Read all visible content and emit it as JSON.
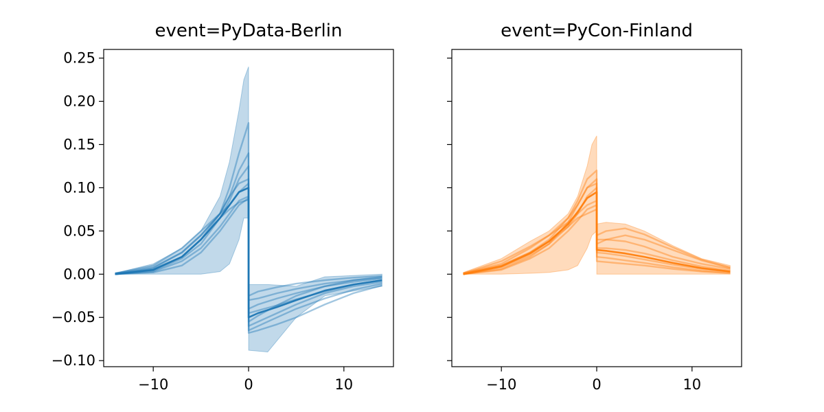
{
  "chart_data": [
    {
      "type": "line",
      "title": "event=PyData-Berlin",
      "xlabel": "",
      "ylabel": "",
      "xlim": [
        -15.2,
        15.2
      ],
      "ylim": [
        -0.107,
        0.26
      ],
      "xticks": [
        -10,
        0,
        10
      ],
      "xtick_labels": [
        "−10",
        "0",
        "10"
      ],
      "yticks": [
        0.25,
        0.2,
        0.15,
        0.1,
        0.05,
        0.0,
        -0.05,
        -0.1
      ],
      "ytick_labels": [
        "0.25",
        "0.20",
        "0.15",
        "0.10",
        "0.05",
        "0.00",
        "−0.05",
        "−0.10"
      ],
      "grid": false,
      "color": "#1f77b4",
      "band": {
        "x": [
          -14,
          -10,
          -7,
          -5,
          -3,
          -2,
          -1,
          -0.5,
          0,
          0.01,
          2,
          5,
          8,
          14
        ],
        "upper": [
          0.001,
          0.012,
          0.03,
          0.05,
          0.09,
          0.13,
          0.19,
          0.225,
          0.24,
          -0.012,
          -0.012,
          -0.014,
          -0.003,
          0.0
        ],
        "lower": [
          0.0,
          0.0,
          0.0,
          0.0,
          0.003,
          0.012,
          0.04,
          0.065,
          0.065,
          -0.088,
          -0.09,
          -0.05,
          -0.025,
          -0.014
        ]
      },
      "series_x": [
        -14,
        -10,
        -7,
        -5,
        -3,
        -2,
        -1,
        0,
        0.01,
        1,
        3,
        5,
        8,
        11,
        14
      ],
      "series": [
        {
          "values": [
            0.001,
            0.005,
            0.02,
            0.04,
            0.07,
            0.1,
            0.14,
            0.175,
            -0.068,
            -0.065,
            -0.058,
            -0.05,
            -0.035,
            -0.022,
            -0.013
          ]
        },
        {
          "values": [
            0.001,
            0.008,
            0.025,
            0.045,
            0.07,
            0.09,
            0.12,
            0.14,
            -0.065,
            -0.06,
            -0.05,
            -0.04,
            -0.028,
            -0.018,
            -0.011
          ]
        },
        {
          "values": [
            0.0,
            0.004,
            0.018,
            0.035,
            0.065,
            0.085,
            0.11,
            0.125,
            -0.06,
            -0.055,
            -0.045,
            -0.035,
            -0.022,
            -0.014,
            -0.009
          ]
        },
        {
          "values": [
            0.001,
            0.01,
            0.03,
            0.05,
            0.07,
            0.08,
            0.095,
            0.105,
            -0.045,
            -0.042,
            -0.036,
            -0.029,
            -0.02,
            -0.012,
            -0.007
          ]
        },
        {
          "values": [
            0.0,
            0.003,
            0.015,
            0.03,
            0.055,
            0.07,
            0.085,
            0.09,
            -0.04,
            -0.035,
            -0.028,
            -0.022,
            -0.014,
            -0.009,
            -0.005
          ]
        },
        {
          "values": [
            0.0,
            0.006,
            0.02,
            0.04,
            0.065,
            0.075,
            0.083,
            0.086,
            -0.03,
            -0.028,
            -0.022,
            -0.017,
            -0.011,
            -0.007,
            -0.004
          ]
        },
        {
          "values": [
            0.0,
            0.002,
            0.01,
            0.025,
            0.05,
            0.065,
            0.08,
            0.088,
            -0.025,
            -0.02,
            -0.015,
            -0.011,
            -0.007,
            -0.004,
            -0.002
          ]
        },
        {
          "values": [
            0.0,
            0.007,
            0.025,
            0.045,
            0.07,
            0.09,
            0.105,
            0.11,
            -0.055,
            -0.048,
            -0.036,
            -0.025,
            -0.014,
            -0.007,
            -0.003
          ]
        }
      ],
      "emphasis_series": {
        "values": [
          0.0,
          0.005,
          0.02,
          0.04,
          0.065,
          0.08,
          0.095,
          0.1,
          -0.05,
          -0.045,
          -0.038,
          -0.03,
          -0.019,
          -0.012,
          -0.007
        ]
      }
    },
    {
      "type": "line",
      "title": "event=PyCon-Finland",
      "xlabel": "",
      "ylabel": "",
      "xlim": [
        -15.2,
        15.2
      ],
      "ylim": [
        -0.107,
        0.26
      ],
      "xticks": [
        -10,
        0,
        10
      ],
      "xtick_labels": [
        "−10",
        "0",
        "10"
      ],
      "yticks": [
        0.25,
        0.2,
        0.15,
        0.1,
        0.05,
        0.0,
        -0.05,
        -0.1
      ],
      "ytick_labels": [],
      "grid": false,
      "color": "#ff7f0e",
      "band": {
        "x": [
          -14,
          -10,
          -7,
          -5,
          -3,
          -2,
          -1,
          -0.5,
          0,
          0.01,
          1,
          3,
          5,
          8,
          11,
          14
        ],
        "upper": [
          0.002,
          0.018,
          0.038,
          0.05,
          0.07,
          0.09,
          0.125,
          0.15,
          0.16,
          0.058,
          0.06,
          0.058,
          0.05,
          0.033,
          0.018,
          0.01
        ],
        "lower": [
          0.0,
          0.0,
          0.001,
          0.002,
          0.005,
          0.01,
          0.03,
          0.045,
          0.05,
          0.0,
          0.0,
          0.0,
          0.0,
          0.0,
          0.0,
          0.0
        ]
      },
      "series_x": [
        -14,
        -10,
        -7,
        -5,
        -3,
        -2,
        -1,
        0,
        0.01,
        1,
        3,
        5,
        8,
        11,
        14
      ],
      "series": [
        {
          "values": [
            0.001,
            0.01,
            0.025,
            0.04,
            0.065,
            0.085,
            0.11,
            0.12,
            0.045,
            0.05,
            0.053,
            0.046,
            0.031,
            0.017,
            0.008
          ]
        },
        {
          "values": [
            0.001,
            0.012,
            0.03,
            0.045,
            0.065,
            0.08,
            0.1,
            0.11,
            0.04,
            0.04,
            0.038,
            0.032,
            0.02,
            0.012,
            0.006
          ]
        },
        {
          "values": [
            0.0,
            0.008,
            0.022,
            0.035,
            0.055,
            0.07,
            0.09,
            0.1,
            0.03,
            0.03,
            0.028,
            0.024,
            0.016,
            0.009,
            0.004
          ]
        },
        {
          "values": [
            0.001,
            0.015,
            0.032,
            0.045,
            0.06,
            0.07,
            0.08,
            0.085,
            0.025,
            0.024,
            0.021,
            0.017,
            0.011,
            0.006,
            0.003
          ]
        },
        {
          "values": [
            0.0,
            0.005,
            0.018,
            0.03,
            0.05,
            0.062,
            0.075,
            0.08,
            0.02,
            0.019,
            0.016,
            0.013,
            0.008,
            0.004,
            0.002
          ]
        },
        {
          "values": [
            0.0,
            0.01,
            0.025,
            0.038,
            0.055,
            0.065,
            0.07,
            0.075,
            0.015,
            0.014,
            0.012,
            0.01,
            0.006,
            0.003,
            0.001
          ]
        },
        {
          "values": [
            0.0,
            0.006,
            0.02,
            0.035,
            0.06,
            0.08,
            0.1,
            0.105,
            0.035,
            0.04,
            0.045,
            0.04,
            0.028,
            0.016,
            0.007
          ]
        }
      ],
      "emphasis_series": {
        "values": [
          0.0,
          0.009,
          0.024,
          0.038,
          0.058,
          0.072,
          0.088,
          0.095,
          0.028,
          0.027,
          0.024,
          0.02,
          0.013,
          0.007,
          0.003
        ]
      }
    }
  ]
}
